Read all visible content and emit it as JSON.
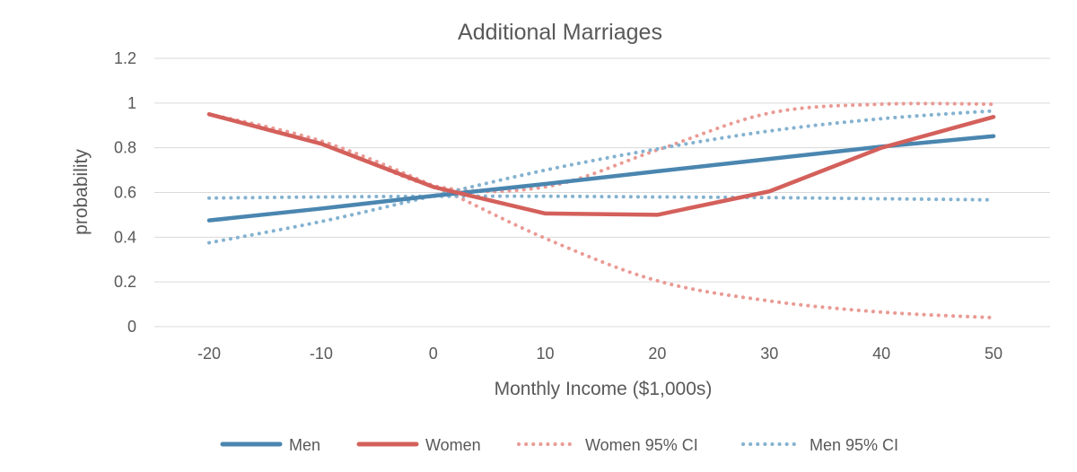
{
  "chart_data": {
    "type": "line",
    "title": "Additional Marriages",
    "xlabel": "Monthly Income ($1,000s)",
    "ylabel": "probability",
    "x": [
      -20,
      -10,
      0,
      10,
      20,
      30,
      40,
      50
    ],
    "x_tick_labels": [
      "-20",
      "-10",
      "0",
      "10",
      "20",
      "30",
      "40",
      "50"
    ],
    "y_ticks": [
      0,
      0.2,
      0.4,
      0.6,
      0.8,
      1,
      1.2
    ],
    "y_tick_labels": [
      "0",
      "0.2",
      "0.4",
      "0.6",
      "0.8",
      "1",
      "1.2"
    ],
    "xlim": [
      -20,
      50
    ],
    "ylim": [
      0,
      1.2
    ],
    "grid": true,
    "legend_position": "bottom",
    "series": [
      {
        "name": "Men",
        "style": "solid",
        "color": "#4a86b0",
        "values": [
          0.475,
          0.528,
          0.585,
          0.638,
          0.695,
          0.75,
          0.805,
          0.852
        ]
      },
      {
        "name": "Women",
        "style": "solid",
        "color": "#d4605b",
        "values": [
          0.95,
          0.818,
          0.625,
          0.506,
          0.5,
          0.605,
          0.8,
          0.938
        ]
      },
      {
        "name": "Women 95% CI",
        "style": "dotted",
        "color": "#ea9a94",
        "values": [
          0.95,
          0.83,
          0.63,
          0.395,
          0.205,
          0.115,
          0.065,
          0.04
        ],
        "upper": [
          0.95,
          0.83,
          0.63,
          0.625,
          0.79,
          0.955,
          0.995,
          0.995
        ]
      },
      {
        "name": "Men 95% CI",
        "style": "dotted",
        "color": "#84b2d0",
        "values": [
          0.575,
          0.58,
          0.583,
          0.583,
          0.58,
          0.577,
          0.572,
          0.567
        ],
        "upper": [
          0.375,
          0.47,
          0.585,
          0.7,
          0.795,
          0.875,
          0.93,
          0.965
        ]
      }
    ]
  }
}
